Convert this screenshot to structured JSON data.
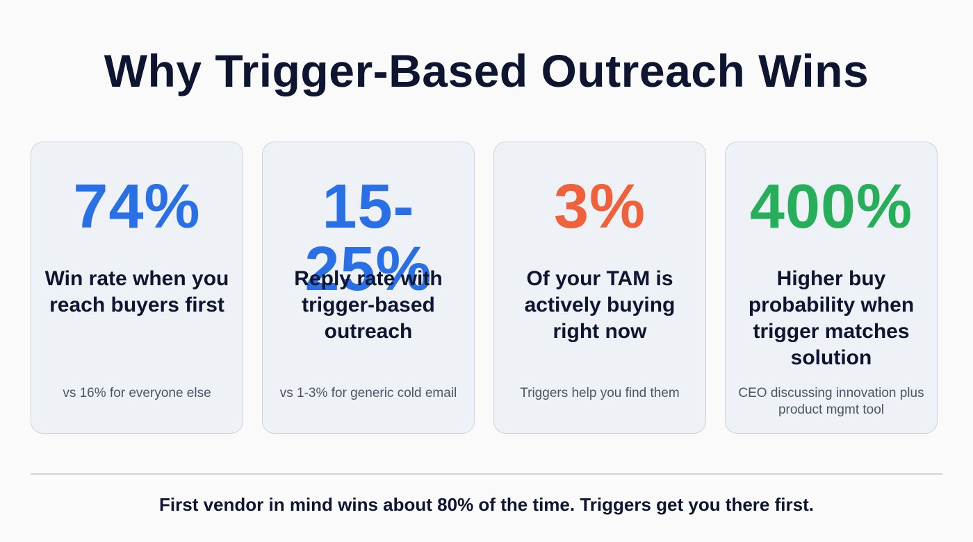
{
  "title": "Why Trigger-Based Outreach Wins",
  "cards": [
    {
      "stat": "74%",
      "color": "#2970e6",
      "label": "Win rate when you reach buyers first",
      "note": "vs 16% for everyone else"
    },
    {
      "stat": "15-25%",
      "color": "#2970e6",
      "label": "Reply rate with trigger-based outreach",
      "note": "vs 1-3% for generic cold email"
    },
    {
      "stat": "3%",
      "color": "#f0603a",
      "label": "Of your TAM is actively buying right now",
      "note": "Triggers help you find them"
    },
    {
      "stat": "400%",
      "color": "#27ae5a",
      "label": "Higher buy probability when trigger matches solution",
      "note": "CEO discussing innovation plus product mgmt tool"
    }
  ],
  "footer": "First vendor in mind wins about 80% of the time. Triggers get you there first."
}
